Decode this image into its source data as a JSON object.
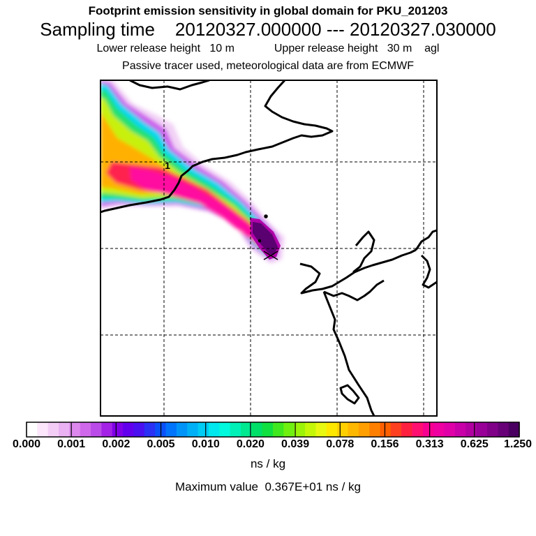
{
  "title": {
    "line1": "Footprint emission sensitivity in global domain for PKU_201203",
    "sampling_label": "Sampling time",
    "sampling_start": "20120327.000000",
    "sampling_sep": "---",
    "sampling_end": "20120327.030000",
    "lower_label": "Lower release height",
    "lower_value": "10 m",
    "upper_label": "Upper release height",
    "upper_value": "30 m",
    "agl": "agl",
    "line4": "Passive tracer used, meteorological data are from ECMWF"
  },
  "map": {
    "contour_label": "1",
    "coastline_color": "#000000",
    "grid_style": "dashed"
  },
  "colorbar": {
    "tick_labels": [
      "0.000",
      "0.001",
      "0.002",
      "0.005",
      "0.010",
      "0.020",
      "0.039",
      "0.078",
      "0.156",
      "0.313",
      "0.625",
      "1.250"
    ],
    "colors": [
      "#ffffff",
      "#fbe6fb",
      "#f4cdf6",
      "#eab2f2",
      "#dd88ec",
      "#cf68ea",
      "#bb4be8",
      "#a322e6",
      "#7f00e8",
      "#6200ee",
      "#4a10f0",
      "#2a30f4",
      "#0a50f8",
      "#0074fa",
      "#0094f8",
      "#00b0f6",
      "#00ccf4",
      "#00e8ee",
      "#00f8dc",
      "#00f0b8",
      "#00e890",
      "#00e068",
      "#10e040",
      "#40e820",
      "#70f010",
      "#9cf408",
      "#c4f808",
      "#e8f810",
      "#ffe800",
      "#ffd000",
      "#ffb800",
      "#ffa000",
      "#ff8000",
      "#ff6000",
      "#ff4020",
      "#ff2040",
      "#ff1070",
      "#f80090",
      "#ef00a0",
      "#e000a8",
      "#c800a8",
      "#b000a0",
      "#980098",
      "#800088",
      "#680078",
      "#4a0060"
    ],
    "units": "ns / kg",
    "max_label": "Maximum value",
    "max_value": "0.367E+01",
    "max_units": "ns / kg"
  }
}
